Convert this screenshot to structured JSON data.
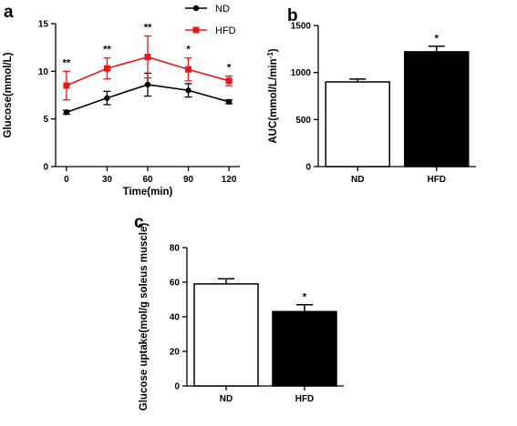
{
  "chart_data": [
    {
      "panel": "a",
      "type": "line",
      "xlabel": "Time(min)",
      "ylabel": "Glucose(mmol/L)",
      "x": [
        0,
        30,
        60,
        90,
        120
      ],
      "xlim": [
        -8,
        128
      ],
      "ylim": [
        0,
        15
      ],
      "yticks": [
        0,
        5,
        10,
        15
      ],
      "legend_position": "top-right",
      "series": [
        {
          "name": "ND",
          "color": "#000000",
          "marker": "circle",
          "values": [
            5.7,
            7.2,
            8.6,
            8.0,
            6.8
          ],
          "errors": [
            0.2,
            0.7,
            1.2,
            0.7,
            0.2
          ]
        },
        {
          "name": "HFD",
          "color": "#e8181a",
          "marker": "square",
          "values": [
            8.5,
            10.3,
            11.5,
            10.2,
            9.0
          ],
          "errors": [
            1.5,
            1.1,
            2.2,
            1.2,
            0.5
          ]
        }
      ],
      "annotations": [
        {
          "x": 0,
          "text": "**"
        },
        {
          "x": 30,
          "text": "**"
        },
        {
          "x": 60,
          "text": "**"
        },
        {
          "x": 90,
          "text": "*"
        },
        {
          "x": 120,
          "text": "*"
        }
      ]
    },
    {
      "panel": "b",
      "type": "bar",
      "ylabel": "AUC(mmol/L/min",
      "ylabel_sup": "-1",
      "ylabel_close": ")",
      "categories": [
        "ND",
        "HFD"
      ],
      "values": [
        900,
        1220
      ],
      "errors": [
        30,
        60
      ],
      "ylim": [
        0,
        1500
      ],
      "yticks": [
        0,
        500,
        1000,
        1500
      ],
      "fills": [
        "#ffffff",
        "#000000"
      ],
      "annotations": [
        {
          "category": "HFD",
          "text": "*"
        }
      ]
    },
    {
      "panel": "c",
      "type": "bar",
      "ylabel": "Glucose uptake(mol/g soleus muscle)",
      "categories": [
        "ND",
        "HFD"
      ],
      "values": [
        59,
        43
      ],
      "errors": [
        3,
        4
      ],
      "ylim": [
        0,
        80
      ],
      "yticks": [
        0,
        20,
        40,
        60,
        80
      ],
      "fills": [
        "#ffffff",
        "#000000"
      ],
      "annotations": [
        {
          "category": "HFD",
          "text": "*"
        }
      ]
    }
  ]
}
